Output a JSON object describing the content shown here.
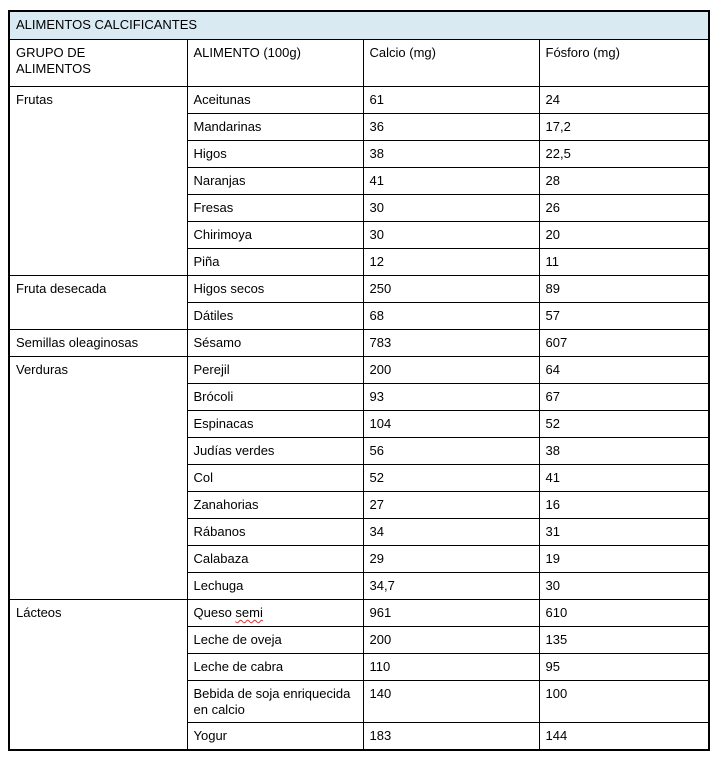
{
  "table": {
    "title": "ALIMENTOS CALCIFICANTES",
    "columns": [
      "GRUPO DE\nALIMENTOS",
      "ALIMENTO (100g)",
      "Calcio (mg)",
      "Fósforo (mg)"
    ],
    "colors": {
      "title_bg": "#d9eaf3",
      "border": "#000000",
      "spellcheck_underline": "#e03535"
    },
    "groups": [
      {
        "name": "Frutas",
        "rows": [
          {
            "food": "Aceitunas",
            "calcio": "61",
            "fosforo": "24"
          },
          {
            "food": "Mandarinas",
            "calcio": "36",
            "fosforo": "17,2"
          },
          {
            "food": "Higos",
            "calcio": "38",
            "fosforo": "22,5"
          },
          {
            "food": "Naranjas",
            "calcio": "41",
            "fosforo": "28"
          },
          {
            "food": "Fresas",
            "calcio": "30",
            "fosforo": "26"
          },
          {
            "food": "Chirimoya",
            "calcio": "30",
            "fosforo": "20"
          },
          {
            "food": "Piña",
            "calcio": "12",
            "fosforo": "11"
          }
        ]
      },
      {
        "name": "Fruta desecada",
        "rows": [
          {
            "food": "Higos secos",
            "calcio": "250",
            "fosforo": "89"
          },
          {
            "food": "Dátiles",
            "calcio": "68",
            "fosforo": "57"
          }
        ]
      },
      {
        "name": "Semillas oleaginosas",
        "rows": [
          {
            "food": "Sésamo",
            "calcio": "783",
            "fosforo": "607"
          }
        ]
      },
      {
        "name": "Verduras",
        "rows": [
          {
            "food": "Perejil",
            "calcio": "200",
            "fosforo": "64"
          },
          {
            "food": "Brócoli",
            "calcio": "93",
            "fosforo": "67"
          },
          {
            "food": "Espinacas",
            "calcio": "104",
            "fosforo": "52"
          },
          {
            "food": "Judías verdes",
            "calcio": "56",
            "fosforo": "38"
          },
          {
            "food": "Col",
            "calcio": "52",
            "fosforo": "41"
          },
          {
            "food": "Zanahorias",
            "calcio": "27",
            "fosforo": "16"
          },
          {
            "food": "Rábanos",
            "calcio": "34",
            "fosforo": "31"
          },
          {
            "food": "Calabaza",
            "calcio": "29",
            "fosforo": "19"
          },
          {
            "food": "Lechuga",
            "calcio": "34,7",
            "fosforo": "30"
          }
        ]
      },
      {
        "name": "Lácteos",
        "rows": [
          {
            "food": "Queso semi",
            "calcio": "961",
            "fosforo": "610",
            "underline_word": "semi"
          },
          {
            "food": "Leche de oveja",
            "calcio": "200",
            "fosforo": "135"
          },
          {
            "food": "Leche de cabra",
            "calcio": "110",
            "fosforo": "95"
          },
          {
            "food": "Bebida de soja enriquecida en calcio",
            "calcio": "140",
            "fosforo": "100"
          },
          {
            "food": "Yogur",
            "calcio": "183",
            "fosforo": "144"
          }
        ]
      }
    ]
  }
}
